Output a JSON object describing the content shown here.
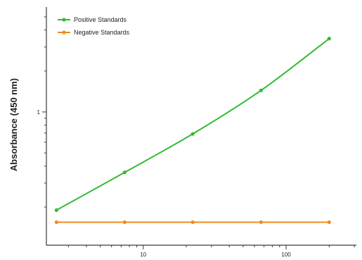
{
  "chart_data": {
    "type": "line",
    "ylabel": "Absorbance (450 nm)",
    "xlabel": "",
    "x_scale": "log",
    "y_scale": "log",
    "xlim": [
      2.1,
      310
    ],
    "ylim": [
      0.105,
      5.9
    ],
    "x_ticks": [
      {
        "value": 10,
        "label": "10"
      },
      {
        "value": 100,
        "label": "100"
      }
    ],
    "y_ticks": [
      {
        "value": 1,
        "label": "1"
      }
    ],
    "grid": false,
    "legend_position": "top-left",
    "series": [
      {
        "name": "Positive Standards",
        "color": "#33bb33",
        "x": [
          2.47,
          7.41,
          22.2,
          66.7,
          200
        ],
        "y": [
          0.19,
          0.36,
          0.69,
          1.44,
          3.46
        ]
      },
      {
        "name": "Negative Standards",
        "color": "#f08a1e",
        "x": [
          2.47,
          7.41,
          22.2,
          66.7,
          200
        ],
        "y": [
          0.155,
          0.155,
          0.155,
          0.155,
          0.155
        ]
      }
    ]
  }
}
